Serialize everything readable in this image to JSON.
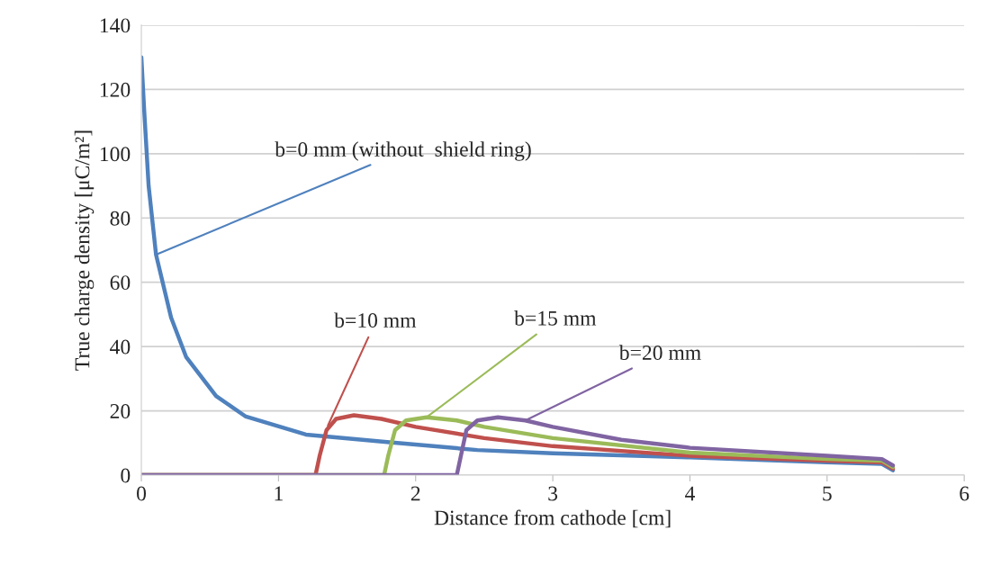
{
  "chart_data": {
    "type": "line",
    "xlabel": "Distance from cathode [cm]",
    "ylabel": "True charge density [μC/m²]",
    "xlim": [
      0,
      6
    ],
    "ylim": [
      0,
      140
    ],
    "xticks": [
      0,
      1,
      2,
      3,
      4,
      5,
      6
    ],
    "yticks": [
      0,
      20,
      40,
      60,
      80,
      100,
      120,
      140
    ],
    "grid": "y",
    "series": [
      {
        "color": "#4f81bd",
        "x": [
          0,
          0.02,
          0.053,
          0.107,
          0.217,
          0.326,
          0.545,
          0.762,
          1.2,
          1.81,
          2.45,
          3,
          4,
          5,
          5.4,
          5.48
        ],
        "values": [
          130,
          114,
          90,
          68.6,
          49,
          36.8,
          24.6,
          18.2,
          12.6,
          10.2,
          7.8,
          6.8,
          5.5,
          4,
          3.5,
          1.5
        ]
      },
      {
        "color": "#c0504d",
        "x": [
          0,
          1.27,
          1.3,
          1.35,
          1.42,
          1.55,
          1.75,
          2,
          2.5,
          3,
          4,
          5,
          5.4,
          5.48
        ],
        "values": [
          0,
          0,
          6,
          14,
          17.5,
          18.6,
          17.5,
          15,
          11.5,
          9,
          6,
          4.5,
          4,
          2
        ]
      },
      {
        "color": "#9bbb59",
        "x": [
          0,
          1.77,
          1.8,
          1.85,
          1.93,
          2.08,
          2.3,
          2.5,
          3,
          4,
          5,
          5.4,
          5.48
        ],
        "values": [
          0,
          0,
          6,
          14,
          17,
          18,
          17,
          15,
          11.5,
          7,
          5,
          4.5,
          2.5
        ]
      },
      {
        "color": "#8064a2",
        "x": [
          0,
          2.3,
          2.33,
          2.37,
          2.45,
          2.6,
          2.8,
          3,
          3.5,
          4,
          5,
          5.4,
          5.48
        ],
        "values": [
          0,
          0,
          6,
          14,
          17,
          18,
          17,
          15,
          11,
          8.5,
          6,
          5,
          3
        ]
      }
    ],
    "annotations": [
      {
        "text": "b=0 mm (without  shield ring)",
        "x": 0.107,
        "y": 68.6
      },
      {
        "text": "b=10 mm",
        "x": 1.36,
        "y": 15.4
      },
      {
        "text": "b=15 mm",
        "x": 2.08,
        "y": 18
      },
      {
        "text": "b=20 mm",
        "x": 2.8,
        "y": 17
      }
    ]
  }
}
